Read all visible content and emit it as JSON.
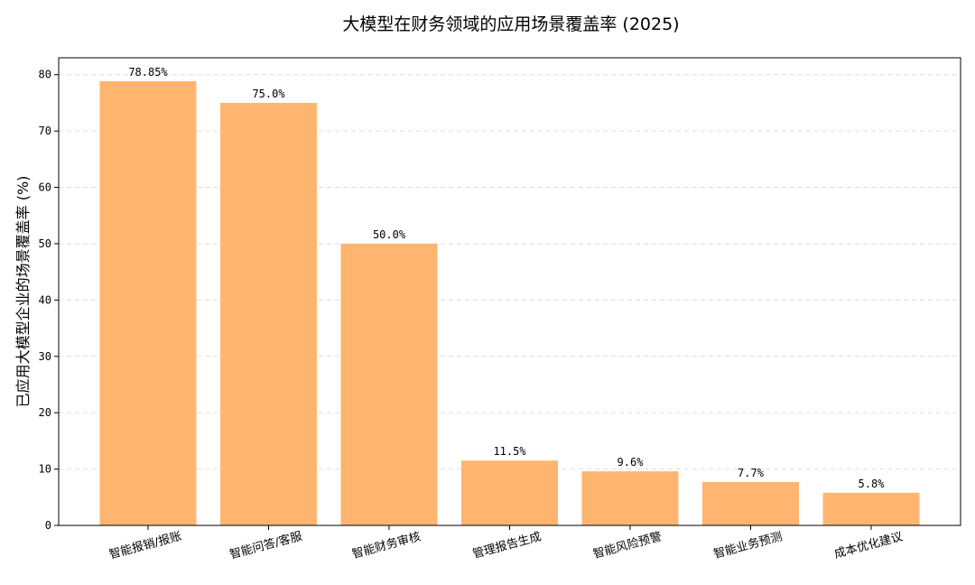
{
  "chart_data": {
    "type": "bar",
    "title": "大模型在财务领域的应用场景覆盖率 (2025)",
    "xlabel": "",
    "ylabel": "已应用大模型企业的场景覆盖率 (%)",
    "ylim": [
      0,
      83
    ],
    "yticks": [
      0,
      10,
      20,
      30,
      40,
      50,
      60,
      70,
      80
    ],
    "grid": "y-dashed",
    "legend": "none",
    "categories": [
      "智能报销/报账",
      "智能问答/客服",
      "智能财务审核",
      "管理报告生成",
      "智能风险预警",
      "智能业务预测",
      "成本优化建议"
    ],
    "values": [
      78.85,
      75.0,
      50.0,
      11.5,
      9.6,
      7.7,
      5.8
    ],
    "data_labels": [
      "78.85%",
      "75.0%",
      "50.0%",
      "11.5%",
      "9.6%",
      "7.7%",
      "5.8%"
    ],
    "bar_color": "#FFB570"
  }
}
